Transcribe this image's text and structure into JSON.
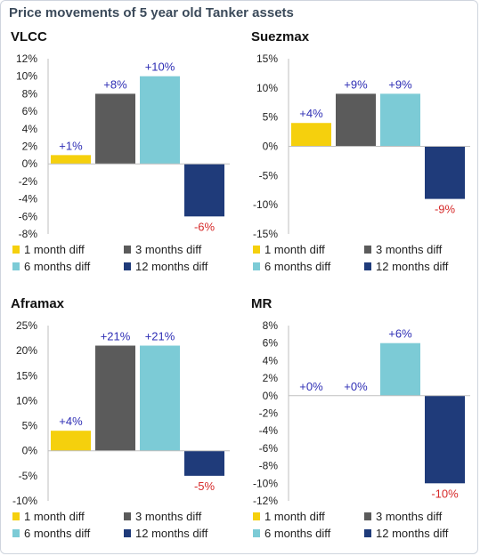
{
  "title": "Price movements of 5 year old Tanker assets",
  "colors": {
    "1 month diff": "#f5d00d",
    "3 months diff": "#5b5b5b",
    "6 months diff": "#7ccbd6",
    "12 months diff": "#1f3b7a",
    "positive_label": "#2f2fb5",
    "negative_label": "#d62a2a"
  },
  "chart_data": [
    {
      "type": "bar",
      "title": "VLCC",
      "series": [
        {
          "name": "1 month diff",
          "values": [
            1
          ],
          "label": "+1%"
        },
        {
          "name": "3 months diff",
          "values": [
            8
          ],
          "label": "+8%"
        },
        {
          "name": "6 months diff",
          "values": [
            10
          ],
          "label": "+10%"
        },
        {
          "name": "12 months diff",
          "values": [
            -6
          ],
          "label": "-6%"
        }
      ],
      "ylim": [
        -8,
        12
      ],
      "yticks": [
        "12%",
        "10%",
        "8%",
        "6%",
        "4%",
        "2%",
        "0%",
        "-2%",
        "-4%",
        "-6%",
        "-8%"
      ],
      "grid": false,
      "legend_position": "bottom"
    },
    {
      "type": "bar",
      "title": "Suezmax",
      "series": [
        {
          "name": "1 month diff",
          "values": [
            4
          ],
          "label": "+4%"
        },
        {
          "name": "3 months diff",
          "values": [
            9
          ],
          "label": "+9%"
        },
        {
          "name": "6 months diff",
          "values": [
            9
          ],
          "label": "+9%"
        },
        {
          "name": "12 months diff",
          "values": [
            -9
          ],
          "label": "-9%"
        }
      ],
      "ylim": [
        -15,
        15
      ],
      "yticks": [
        "15%",
        "10%",
        "5%",
        "0%",
        "-5%",
        "-10%",
        "-15%"
      ],
      "grid": false,
      "legend_position": "bottom"
    },
    {
      "type": "bar",
      "title": "Aframax",
      "series": [
        {
          "name": "1 month diff",
          "values": [
            4
          ],
          "label": "+4%"
        },
        {
          "name": "3 months diff",
          "values": [
            21
          ],
          "label": "+21%"
        },
        {
          "name": "6 months diff",
          "values": [
            21
          ],
          "label": "+21%"
        },
        {
          "name": "12 months diff",
          "values": [
            -5
          ],
          "label": "-5%"
        }
      ],
      "ylim": [
        -10,
        25
      ],
      "yticks": [
        "25%",
        "20%",
        "15%",
        "10%",
        "5%",
        "0%",
        "-5%",
        "-10%"
      ],
      "grid": false,
      "legend_position": "bottom"
    },
    {
      "type": "bar",
      "title": "MR",
      "series": [
        {
          "name": "1 month diff",
          "values": [
            0
          ],
          "label": "+0%"
        },
        {
          "name": "3 months diff",
          "values": [
            0
          ],
          "label": "+0%"
        },
        {
          "name": "6 months diff",
          "values": [
            6
          ],
          "label": "+6%"
        },
        {
          "name": "12 months diff",
          "values": [
            -10
          ],
          "label": "-10%"
        }
      ],
      "ylim": [
        -12,
        8
      ],
      "yticks": [
        "8%",
        "6%",
        "4%",
        "2%",
        "0%",
        "-2%",
        "-4%",
        "-6%",
        "-8%",
        "-10%",
        "-12%"
      ],
      "grid": false,
      "legend_position": "bottom"
    }
  ]
}
